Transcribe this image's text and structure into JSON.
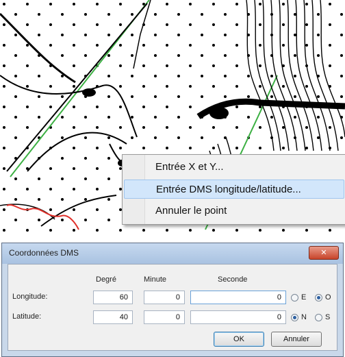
{
  "context_menu": {
    "items": [
      {
        "label": "Entrée X et Y..."
      },
      {
        "label": "Entrée DMS longitude/latitude...",
        "highlighted": true
      },
      {
        "label": "Annuler le point"
      }
    ]
  },
  "dialog": {
    "title": "Coordonnées DMS",
    "close_icon": "close-icon",
    "headers": {
      "degree": "Degré",
      "minute": "Minute",
      "second": "Seconde"
    },
    "rows": [
      {
        "label": "Longitude:",
        "degree": "60",
        "minute": "0",
        "second": "0",
        "dir_a": "E",
        "dir_b": "O",
        "selected": "O"
      },
      {
        "label": "Latitude:",
        "degree": "40",
        "minute": "0",
        "second": "0",
        "dir_a": "N",
        "dir_b": "S",
        "selected": "N"
      }
    ],
    "ok_label": "OK",
    "cancel_label": "Annuler"
  },
  "colors": {
    "map_lines": "#000000",
    "map_grid": "#3cb043",
    "map_red": "#e0302a",
    "menu_highlight": "#d2e6fb"
  }
}
